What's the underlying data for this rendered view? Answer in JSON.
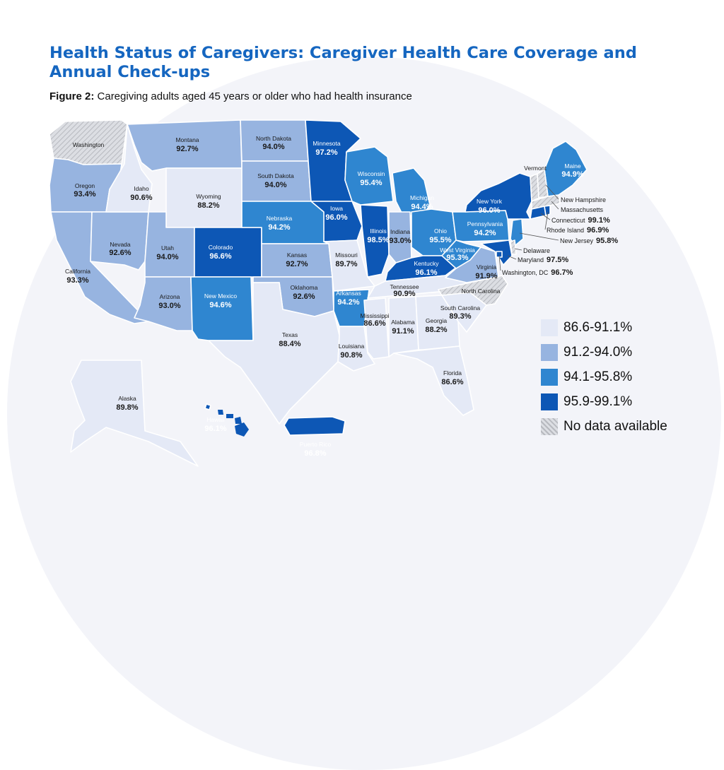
{
  "title": "Health Status of Caregivers: Caregiver Health Care Coverage and Annual Check-ups",
  "figure_label": "Figure 2:",
  "figure_caption": "Caregiving adults aged 45 years or older who had health insurance",
  "colors": {
    "bin1": "#e4e9f6",
    "bin2": "#97b4e0",
    "bin3": "#2f86d0",
    "bin4": "#0d57b5",
    "nodata": "#d2d4d9",
    "title": "#1566c0"
  },
  "legend": [
    {
      "label": "86.6-91.1%",
      "bin": "bin1"
    },
    {
      "label": "91.2-94.0%",
      "bin": "bin2"
    },
    {
      "label": "94.1-95.8%",
      "bin": "bin3"
    },
    {
      "label": "95.9-99.1%",
      "bin": "bin4"
    },
    {
      "label": "No data available",
      "bin": "nodata"
    }
  ],
  "states": [
    {
      "name": "Washington",
      "value": null
    },
    {
      "name": "Oregon",
      "value": "93.4%"
    },
    {
      "name": "California",
      "value": "93.3%"
    },
    {
      "name": "Nevada",
      "value": "92.6%"
    },
    {
      "name": "Idaho",
      "value": "90.6%"
    },
    {
      "name": "Montana",
      "value": "92.7%"
    },
    {
      "name": "Wyoming",
      "value": "88.2%"
    },
    {
      "name": "Utah",
      "value": "94.0%"
    },
    {
      "name": "Arizona",
      "value": "93.0%"
    },
    {
      "name": "Colorado",
      "value": "96.6%"
    },
    {
      "name": "New Mexico",
      "value": "94.6%"
    },
    {
      "name": "North Dakota",
      "value": "94.0%"
    },
    {
      "name": "South Dakota",
      "value": "94.0%"
    },
    {
      "name": "Nebraska",
      "value": "94.2%"
    },
    {
      "name": "Kansas",
      "value": "92.7%"
    },
    {
      "name": "Oklahoma",
      "value": "92.6%"
    },
    {
      "name": "Texas",
      "value": "88.4%"
    },
    {
      "name": "Minnesota",
      "value": "97.2%"
    },
    {
      "name": "Iowa",
      "value": "96.0%"
    },
    {
      "name": "Missouri",
      "value": "89.7%"
    },
    {
      "name": "Arkansas",
      "value": "94.2%"
    },
    {
      "name": "Louisiana",
      "value": "90.8%"
    },
    {
      "name": "Wisconsin",
      "value": "95.4%"
    },
    {
      "name": "Illinois",
      "value": "98.5%"
    },
    {
      "name": "Michigan",
      "value": "94.4%"
    },
    {
      "name": "Indiana",
      "value": "93.0%"
    },
    {
      "name": "Ohio",
      "value": "95.5%"
    },
    {
      "name": "Kentucky",
      "value": "96.1%"
    },
    {
      "name": "Tennessee",
      "value": "90.9%"
    },
    {
      "name": "Mississippi",
      "value": "86.6%"
    },
    {
      "name": "Alabama",
      "value": "91.1%"
    },
    {
      "name": "Georgia",
      "value": "88.2%"
    },
    {
      "name": "Florida",
      "value": "86.6%"
    },
    {
      "name": "South Carolina",
      "value": "89.3%"
    },
    {
      "name": "North Carolina",
      "value": null
    },
    {
      "name": "Virginia",
      "value": "91.9%"
    },
    {
      "name": "West Virginia",
      "value": "95.3%"
    },
    {
      "name": "Pennsylvania",
      "value": "94.2%"
    },
    {
      "name": "New York",
      "value": "96.0%"
    },
    {
      "name": "Vermont",
      "value": null
    },
    {
      "name": "Maine",
      "value": "94.9%"
    },
    {
      "name": "New Hampshire",
      "value": null
    },
    {
      "name": "Massachusetts",
      "value": null
    },
    {
      "name": "Connecticut",
      "value": "99.1%"
    },
    {
      "name": "Rhode Island",
      "value": "96.9%"
    },
    {
      "name": "New Jersey",
      "value": "95.8%"
    },
    {
      "name": "Delaware",
      "value": null
    },
    {
      "name": "Maryland",
      "value": "97.5%"
    },
    {
      "name": "Washington, DC",
      "value": "96.7%"
    },
    {
      "name": "Alaska",
      "value": "89.8%"
    },
    {
      "name": "Hawaii",
      "value": "96.1%"
    },
    {
      "name": "Puerto Rico",
      "value": "96.8%"
    }
  ]
}
